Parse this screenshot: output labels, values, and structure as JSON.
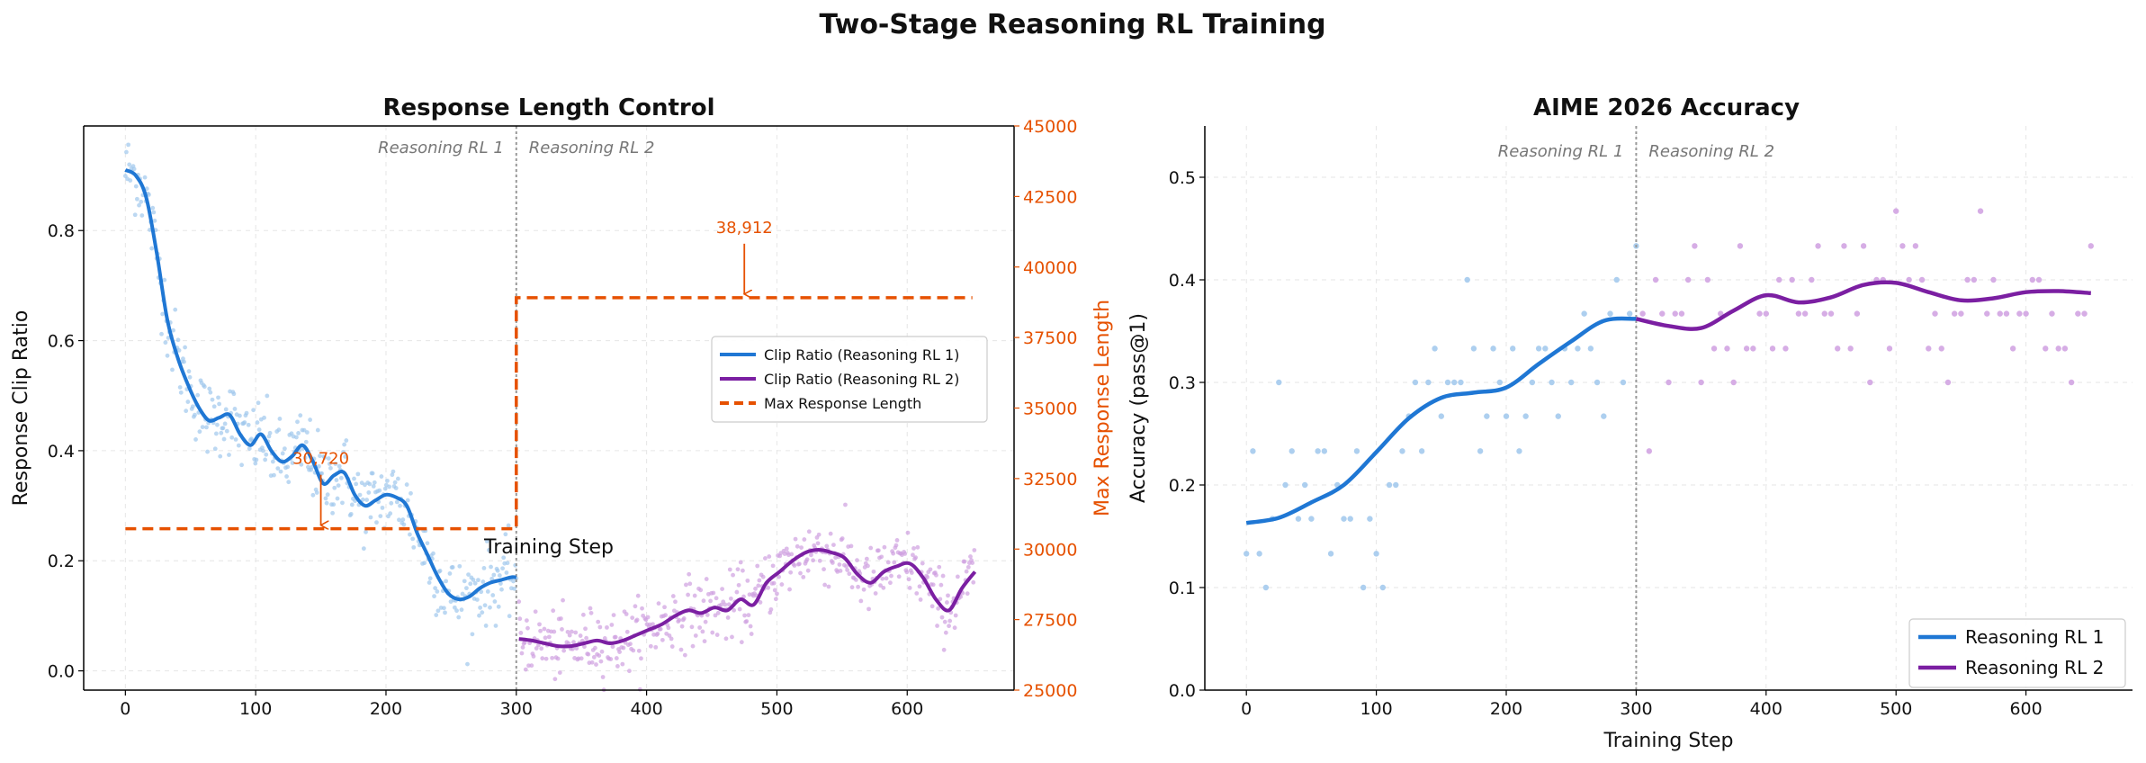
{
  "title": "Two-Stage Reasoning RL Training",
  "colors": {
    "rl1": "#1f77d4",
    "rl1_light": "#9fc7ec",
    "rl2": "#7b1fa2",
    "rl2_light": "#cf9fe0",
    "max_len": "#e65100",
    "boundary": "#999999"
  },
  "chart_data": [
    {
      "type": "line",
      "title": "Response Length Control",
      "xlabel": "Training Step",
      "ylabel": "Response Clip Ratio",
      "ylabel_right": "Max Response Length",
      "xlim": [
        -32,
        682
      ],
      "ylim": [
        -0.035,
        0.99
      ],
      "ylim_right": [
        25000,
        45000
      ],
      "xticks": [
        0,
        100,
        200,
        300,
        400,
        500,
        600
      ],
      "yticks": [
        0.0,
        0.2,
        0.4,
        0.6,
        0.8
      ],
      "yticks_right": [
        25000,
        27500,
        30000,
        32500,
        35000,
        37500,
        40000,
        42500,
        45000
      ],
      "grid": true,
      "legend_position": "center-right",
      "stage_boundary": 300,
      "stage_labels": [
        "Reasoning RL 1",
        "Reasoning RL 2"
      ],
      "series": [
        {
          "name": "Clip Ratio (Reasoning RL 1)",
          "x": [
            0,
            8,
            16,
            24,
            32,
            40,
            48,
            56,
            64,
            72,
            80,
            88,
            96,
            104,
            112,
            120,
            128,
            136,
            144,
            152,
            160,
            168,
            176,
            184,
            192,
            200,
            208,
            216,
            224,
            232,
            240,
            248,
            256,
            264,
            272,
            280,
            288,
            296,
            300
          ],
          "y": [
            0.91,
            0.9,
            0.86,
            0.76,
            0.64,
            0.57,
            0.52,
            0.48,
            0.455,
            0.46,
            0.465,
            0.43,
            0.41,
            0.43,
            0.4,
            0.38,
            0.39,
            0.41,
            0.38,
            0.34,
            0.355,
            0.36,
            0.32,
            0.3,
            0.31,
            0.32,
            0.315,
            0.3,
            0.25,
            0.21,
            0.17,
            0.14,
            0.13,
            0.135,
            0.15,
            0.16,
            0.165,
            0.17,
            0.17
          ]
        },
        {
          "name": "Clip Ratio (Reasoning RL 2)",
          "x": [
            302,
            312,
            322,
            332,
            342,
            352,
            362,
            372,
            382,
            392,
            402,
            412,
            422,
            432,
            442,
            452,
            462,
            472,
            482,
            492,
            502,
            512,
            522,
            532,
            542,
            552,
            562,
            572,
            582,
            592,
            602,
            612,
            622,
            632,
            642,
            652
          ],
          "y": [
            0.058,
            0.055,
            0.05,
            0.045,
            0.045,
            0.05,
            0.055,
            0.05,
            0.055,
            0.065,
            0.075,
            0.085,
            0.1,
            0.11,
            0.105,
            0.115,
            0.11,
            0.13,
            0.12,
            0.16,
            0.18,
            0.2,
            0.215,
            0.22,
            0.215,
            0.205,
            0.175,
            0.16,
            0.18,
            0.19,
            0.195,
            0.17,
            0.13,
            0.11,
            0.15,
            0.18
          ]
        },
        {
          "name": "Max Response Length",
          "axis": "right",
          "x": [
            0,
            300,
            300,
            650
          ],
          "y": [
            30720,
            30720,
            38912,
            38912
          ]
        }
      ],
      "annotations": [
        {
          "text": "30,720",
          "x": 150,
          "y": 30720
        },
        {
          "text": "38,912",
          "x": 475,
          "y": 38912
        }
      ]
    },
    {
      "type": "line",
      "title": "AIME 2026 Accuracy",
      "xlabel": "Training Step",
      "ylabel": "Accuracy (pass@1)",
      "xlim": [
        -32,
        682
      ],
      "ylim": [
        0.0,
        0.55
      ],
      "xticks": [
        0,
        100,
        200,
        300,
        400,
        500,
        600
      ],
      "yticks": [
        0.0,
        0.1,
        0.2,
        0.3,
        0.4,
        0.5
      ],
      "grid": true,
      "legend_position": "lower-right",
      "stage_boundary": 300,
      "stage_labels": [
        "Reasoning RL 1",
        "Reasoning RL 2"
      ],
      "series": [
        {
          "name": "Reasoning RL 1",
          "x": [
            0,
            25,
            50,
            75,
            100,
            125,
            150,
            175,
            200,
            225,
            250,
            275,
            300
          ],
          "y": [
            0.163,
            0.168,
            0.183,
            0.2,
            0.232,
            0.265,
            0.285,
            0.29,
            0.295,
            0.318,
            0.34,
            0.36,
            0.362
          ]
        },
        {
          "name": "Reasoning RL 2",
          "x": [
            300,
            325,
            350,
            375,
            400,
            425,
            450,
            475,
            500,
            525,
            550,
            575,
            600,
            625,
            650
          ],
          "y": [
            0.362,
            0.355,
            0.353,
            0.37,
            0.385,
            0.378,
            0.383,
            0.395,
            0.397,
            0.388,
            0.38,
            0.382,
            0.388,
            0.389,
            0.387
          ]
        }
      ]
    }
  ]
}
